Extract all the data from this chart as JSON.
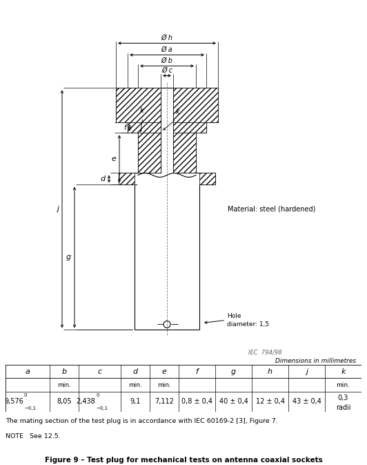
{
  "title": "Figure 9 – Test plug for mechanical tests on antenna coaxial sockets",
  "fig_width": 5.32,
  "fig_height": 6.73,
  "dpi": 100,
  "table_headers_row1": [
    "a",
    "b",
    "c",
    "d",
    "e",
    "f",
    "g",
    "h",
    "j",
    "k"
  ],
  "table_headers_row2": [
    "",
    "min.",
    "",
    "min.",
    "min.",
    "",
    "",
    "",
    "",
    "min."
  ],
  "note_text": "The mating section of the test plug is in accordance with IEC 60169-2 [3], Figure 7.",
  "note2_text": "NOTE   See 12.5.",
  "dim_text": "Dimensions in millimetres",
  "iec_text": "IEC  794/98",
  "material_text": "Material: steel (hardened)",
  "hole_text": "Hole\ndiameter: 1,5",
  "background": "#ffffff",
  "line_color": "#000000"
}
